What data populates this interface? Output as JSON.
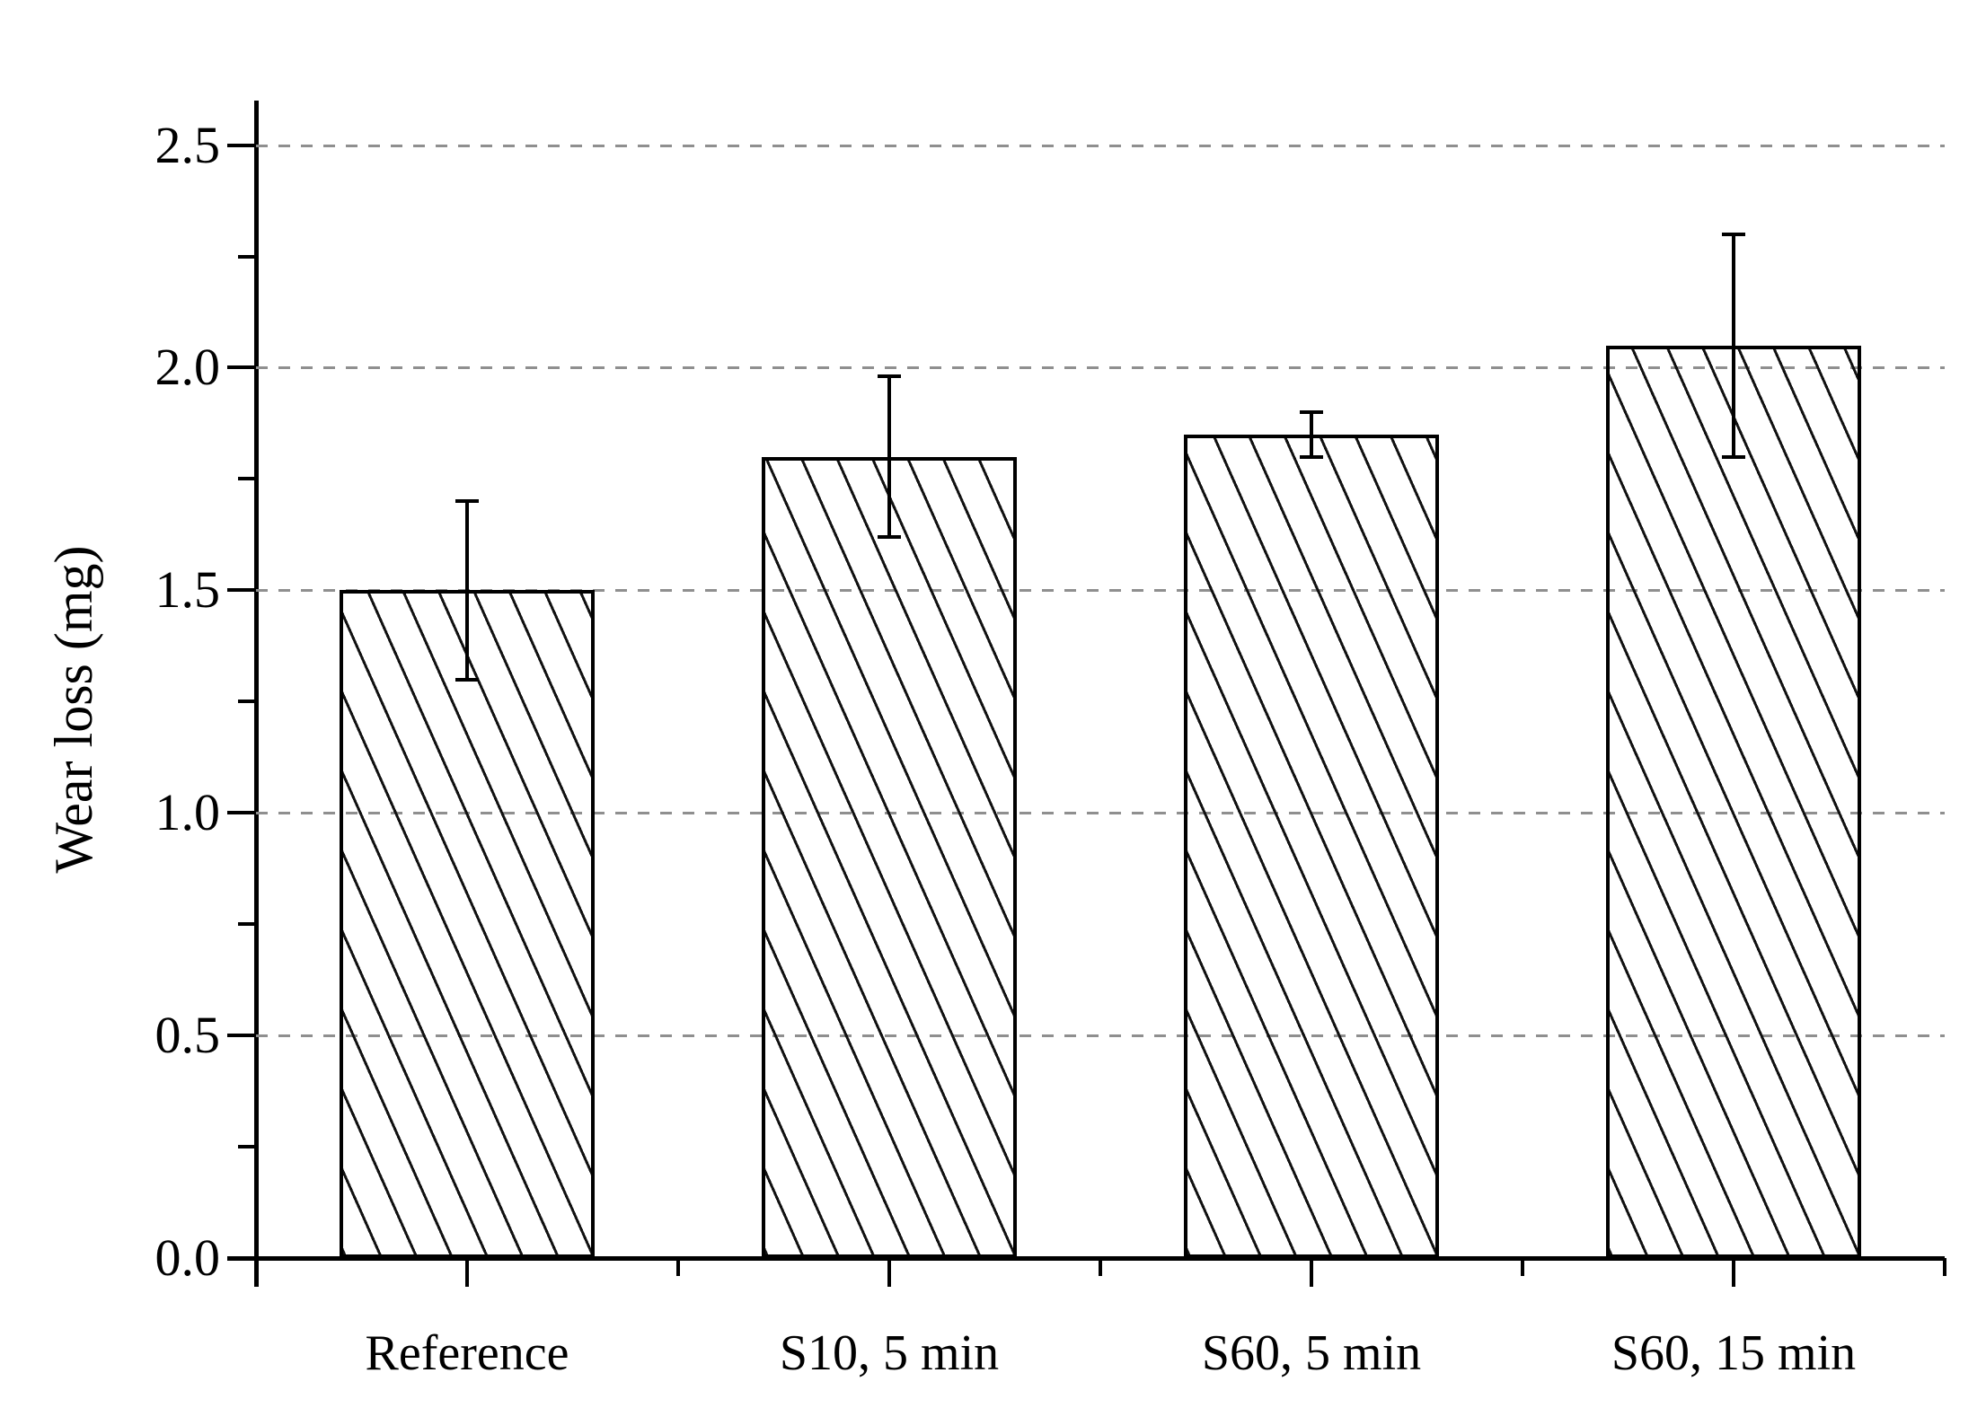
{
  "chart_data": {
    "type": "bar",
    "title": "",
    "categories": [
      "Reference",
      "S10, 5 min",
      "S60, 5 min",
      "S60, 15 min"
    ],
    "values": [
      1.5,
      1.8,
      1.85,
      2.05
    ],
    "error_bars": [
      0.2,
      0.18,
      0.05,
      0.25
    ],
    "series": [
      {
        "name": "Wear loss",
        "values": [
          1.5,
          1.8,
          1.85,
          2.05
        ],
        "errors": [
          0.2,
          0.18,
          0.05,
          0.25
        ]
      }
    ],
    "xlabel": "",
    "ylabel": "Wear loss (mg)",
    "ylim": [
      0.0,
      2.6
    ],
    "ytick_major": [
      0.0,
      0.5,
      1.0,
      1.5,
      2.0,
      2.5
    ],
    "ytick_labels": [
      "0.0",
      "0.5",
      "1.0",
      "1.5",
      "2.0",
      "2.5"
    ],
    "ytick_minor": [
      0.25,
      0.75,
      1.25,
      1.75,
      2.25
    ],
    "grid": {
      "style": "horizontal dashed at major y ticks",
      "color": "#8f8f8f"
    },
    "legend": "none",
    "bar_style": {
      "fill": "white",
      "hatch": "steep \\ diagonal lines",
      "border_color": "#000000"
    },
    "colors": {
      "axis": "#000000",
      "text": "#000000",
      "background": "#ffffff"
    }
  }
}
